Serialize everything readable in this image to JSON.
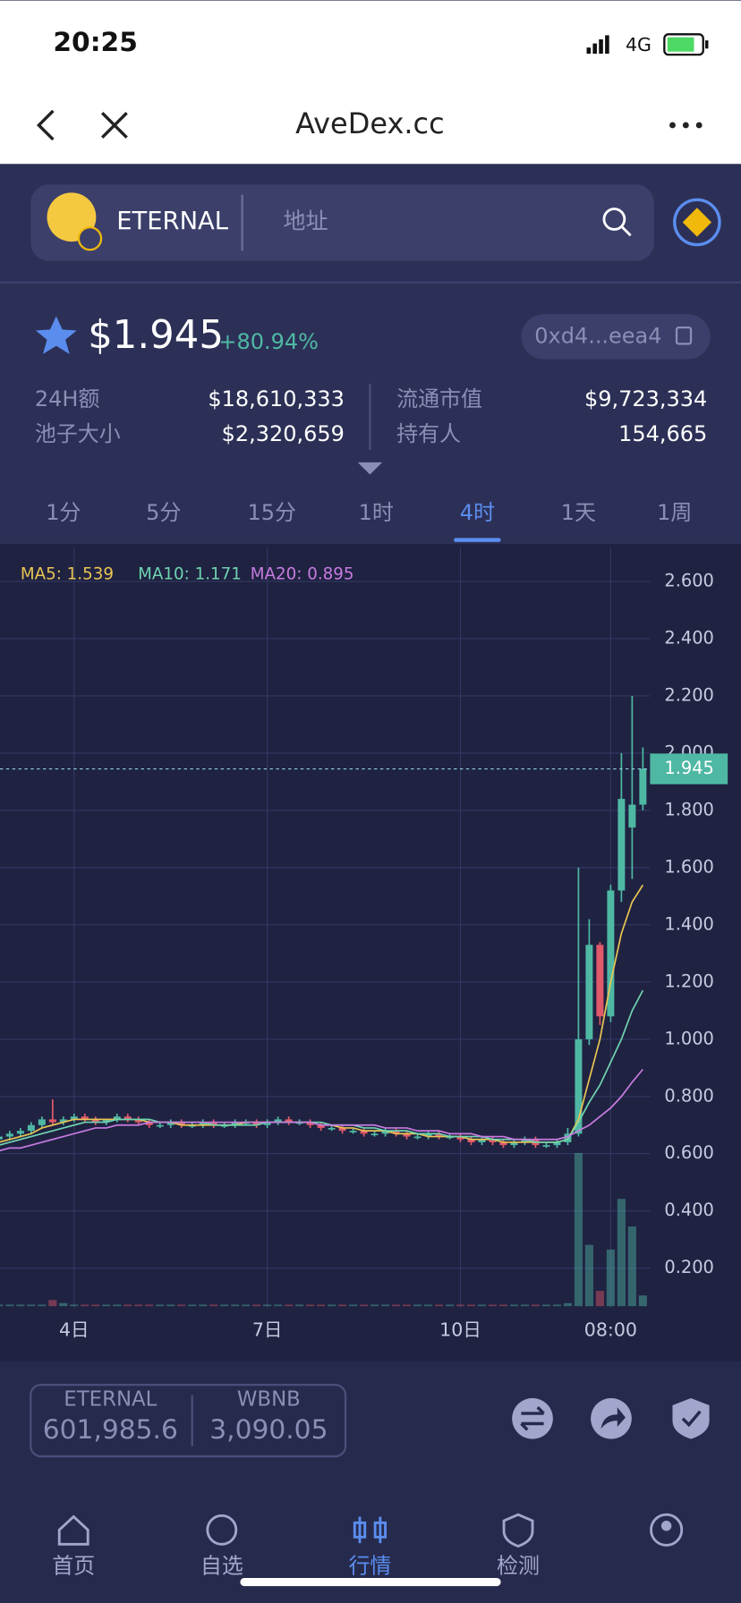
{
  "status_bar": {
    "time": "20:25",
    "network": "4G"
  },
  "nav_bar": {
    "title": "AveDex.cc"
  },
  "search": {
    "token": "ETERNAL",
    "placeholder": "地址"
  },
  "token": {
    "price": "$1.945",
    "change": "+80.94%",
    "address": "0xd4...eea4",
    "stats": [
      {
        "label": "24H额",
        "value": "$18,610,333"
      },
      {
        "label": "流通市值",
        "value": "$9,723,334"
      },
      {
        "label": "池子大小",
        "value": "$2,320,659"
      },
      {
        "label": "持有人",
        "value": "154,665"
      }
    ]
  },
  "intervals": {
    "items": [
      "1分",
      "5分",
      "15分",
      "1时",
      "4时",
      "1天",
      "1周"
    ],
    "active": 4
  },
  "chart_data": {
    "type": "candlestick",
    "categories": [
      null,
      null,
      null,
      null,
      null,
      null,
      null,
      "4日",
      null,
      null,
      null,
      null,
      null,
      null,
      null,
      null,
      null,
      null,
      null,
      null,
      null,
      null,
      null,
      null,
      null,
      "7日",
      null,
      null,
      null,
      null,
      null,
      null,
      null,
      null,
      null,
      null,
      null,
      null,
      null,
      null,
      null,
      null,
      null,
      "10日",
      null,
      null,
      null,
      null,
      null,
      null,
      null,
      null,
      null,
      null,
      null,
      null,
      null,
      "08:00",
      null,
      null,
      null
    ],
    "open": [
      0.65,
      0.66,
      0.67,
      0.68,
      0.7,
      0.72,
      0.71,
      0.72,
      0.73,
      0.72,
      0.71,
      0.72,
      0.73,
      0.72,
      0.71,
      0.7,
      0.7,
      0.71,
      0.7,
      0.7,
      0.71,
      0.7,
      0.7,
      0.71,
      0.71,
      0.7,
      0.71,
      0.72,
      0.71,
      0.71,
      0.7,
      0.69,
      0.69,
      0.68,
      0.68,
      0.67,
      0.67,
      0.68,
      0.67,
      0.66,
      0.66,
      0.67,
      0.66,
      0.66,
      0.65,
      0.64,
      0.65,
      0.64,
      0.63,
      0.64,
      0.65,
      0.63,
      0.63,
      0.64,
      0.67,
      1.0,
      1.33,
      1.08,
      1.52,
      1.74,
      1.82
    ],
    "high": [
      0.67,
      0.68,
      0.69,
      0.71,
      0.73,
      0.79,
      0.73,
      0.74,
      0.74,
      0.73,
      0.72,
      0.74,
      0.74,
      0.73,
      0.72,
      0.71,
      0.72,
      0.72,
      0.71,
      0.72,
      0.72,
      0.71,
      0.72,
      0.72,
      0.72,
      0.72,
      0.73,
      0.73,
      0.72,
      0.72,
      0.71,
      0.7,
      0.7,
      0.69,
      0.69,
      0.68,
      0.69,
      0.69,
      0.68,
      0.67,
      0.68,
      0.68,
      0.67,
      0.67,
      0.66,
      0.66,
      0.66,
      0.65,
      0.65,
      0.66,
      0.66,
      0.64,
      0.65,
      0.69,
      1.6,
      1.42,
      1.34,
      1.54,
      2.0,
      2.2,
      2.02
    ],
    "low": [
      0.64,
      0.65,
      0.66,
      0.67,
      0.69,
      0.7,
      0.7,
      0.71,
      0.71,
      0.7,
      0.7,
      0.71,
      0.71,
      0.7,
      0.69,
      0.69,
      0.69,
      0.69,
      0.69,
      0.69,
      0.69,
      0.69,
      0.69,
      0.7,
      0.69,
      0.69,
      0.7,
      0.7,
      0.7,
      0.69,
      0.68,
      0.68,
      0.67,
      0.67,
      0.66,
      0.66,
      0.66,
      0.66,
      0.65,
      0.65,
      0.65,
      0.65,
      0.65,
      0.64,
      0.63,
      0.63,
      0.63,
      0.62,
      0.62,
      0.63,
      0.62,
      0.62,
      0.62,
      0.63,
      0.66,
      0.98,
      1.05,
      1.06,
      1.48,
      1.56,
      1.8
    ],
    "close": [
      0.66,
      0.67,
      0.68,
      0.7,
      0.72,
      0.71,
      0.72,
      0.73,
      0.72,
      0.71,
      0.72,
      0.73,
      0.72,
      0.71,
      0.7,
      0.7,
      0.71,
      0.7,
      0.7,
      0.71,
      0.7,
      0.7,
      0.71,
      0.71,
      0.7,
      0.71,
      0.72,
      0.71,
      0.71,
      0.7,
      0.69,
      0.69,
      0.68,
      0.68,
      0.67,
      0.67,
      0.68,
      0.67,
      0.66,
      0.66,
      0.67,
      0.66,
      0.66,
      0.65,
      0.64,
      0.65,
      0.64,
      0.63,
      0.64,
      0.65,
      0.63,
      0.63,
      0.64,
      0.67,
      1.0,
      1.33,
      1.08,
      1.52,
      1.84,
      1.82,
      1.945
    ],
    "volume": [
      1,
      1,
      1,
      1,
      1,
      4,
      2,
      1,
      1,
      1,
      1,
      1,
      1,
      1,
      1,
      1,
      1,
      1,
      1,
      1,
      1,
      1,
      1,
      1,
      1,
      1,
      1,
      1,
      1,
      1,
      1,
      1,
      1,
      1,
      1,
      1,
      1,
      1,
      1,
      1,
      1,
      1,
      1,
      1,
      1,
      1,
      1,
      1,
      1,
      1,
      1,
      1,
      1,
      2,
      100,
      40,
      10,
      37,
      70,
      52,
      7
    ],
    "vlim": [
      0,
      100
    ],
    "series": [
      {
        "name": "MA5: 1.539",
        "color": "#e8c454",
        "values": [
          0.64,
          0.65,
          0.66,
          0.67,
          0.69,
          0.7,
          0.71,
          0.72,
          0.72,
          0.72,
          0.72,
          0.72,
          0.72,
          0.72,
          0.71,
          0.71,
          0.71,
          0.7,
          0.7,
          0.7,
          0.7,
          0.7,
          0.7,
          0.71,
          0.71,
          0.71,
          0.71,
          0.71,
          0.71,
          0.71,
          0.7,
          0.7,
          0.69,
          0.69,
          0.68,
          0.68,
          0.68,
          0.67,
          0.67,
          0.67,
          0.66,
          0.66,
          0.66,
          0.66,
          0.65,
          0.65,
          0.65,
          0.64,
          0.64,
          0.64,
          0.64,
          0.64,
          0.64,
          0.65,
          0.72,
          0.86,
          1.0,
          1.2,
          1.37,
          1.48,
          1.539
        ]
      },
      {
        "name": "MA10: 1.171",
        "color": "#6fd3b0",
        "values": [
          0.63,
          0.64,
          0.65,
          0.66,
          0.67,
          0.68,
          0.69,
          0.7,
          0.71,
          0.71,
          0.71,
          0.72,
          0.72,
          0.72,
          0.72,
          0.71,
          0.71,
          0.71,
          0.71,
          0.71,
          0.7,
          0.7,
          0.7,
          0.7,
          0.7,
          0.71,
          0.71,
          0.71,
          0.71,
          0.71,
          0.71,
          0.7,
          0.7,
          0.7,
          0.69,
          0.69,
          0.68,
          0.68,
          0.68,
          0.67,
          0.67,
          0.67,
          0.66,
          0.66,
          0.66,
          0.66,
          0.65,
          0.65,
          0.65,
          0.65,
          0.64,
          0.64,
          0.64,
          0.65,
          0.71,
          0.78,
          0.84,
          0.92,
          1.0,
          1.1,
          1.171
        ]
      },
      {
        "name": "MA20: 0.895",
        "color": "#c77be0",
        "values": [
          0.61,
          0.62,
          0.62,
          0.63,
          0.64,
          0.65,
          0.66,
          0.67,
          0.68,
          0.69,
          0.69,
          0.7,
          0.7,
          0.7,
          0.71,
          0.71,
          0.71,
          0.71,
          0.71,
          0.71,
          0.71,
          0.71,
          0.71,
          0.71,
          0.71,
          0.71,
          0.71,
          0.71,
          0.71,
          0.71,
          0.7,
          0.7,
          0.7,
          0.7,
          0.7,
          0.7,
          0.69,
          0.69,
          0.69,
          0.68,
          0.68,
          0.68,
          0.67,
          0.67,
          0.67,
          0.66,
          0.66,
          0.66,
          0.65,
          0.65,
          0.65,
          0.65,
          0.65,
          0.66,
          0.68,
          0.7,
          0.73,
          0.76,
          0.8,
          0.85,
          0.895
        ]
      }
    ],
    "up_color": "#4fb8a4",
    "down_color": "#e05a6a",
    "last_price": 1.945,
    "ylim": [
      0.06,
      2.72
    ],
    "yticks": [
      {
        "value": 0.2,
        "label": "0.200"
      },
      {
        "value": 0.4,
        "label": "0.400"
      },
      {
        "value": 0.6,
        "label": "0.600"
      },
      {
        "value": 0.8,
        "label": "0.800"
      },
      {
        "value": 1.0,
        "label": "1.000"
      },
      {
        "value": 1.2,
        "label": "1.200"
      },
      {
        "value": 1.4,
        "label": "1.400"
      },
      {
        "value": 1.6,
        "label": "1.600"
      },
      {
        "value": 1.8,
        "label": "1.800"
      },
      {
        "value": 2.0,
        "label": "2.000"
      },
      {
        "value": 2.2,
        "label": "2.200"
      },
      {
        "value": 2.4,
        "label": "2.400"
      },
      {
        "value": 2.6,
        "label": "2.600"
      }
    ],
    "grid": true
  },
  "pool": [
    {
      "token": "ETERNAL",
      "amount": "601,985.6"
    },
    {
      "token": "WBNB",
      "amount": "3,090.05"
    }
  ],
  "tab_bar": {
    "items": [
      "首页",
      "自选",
      "行情",
      "检测"
    ],
    "active": 2
  }
}
